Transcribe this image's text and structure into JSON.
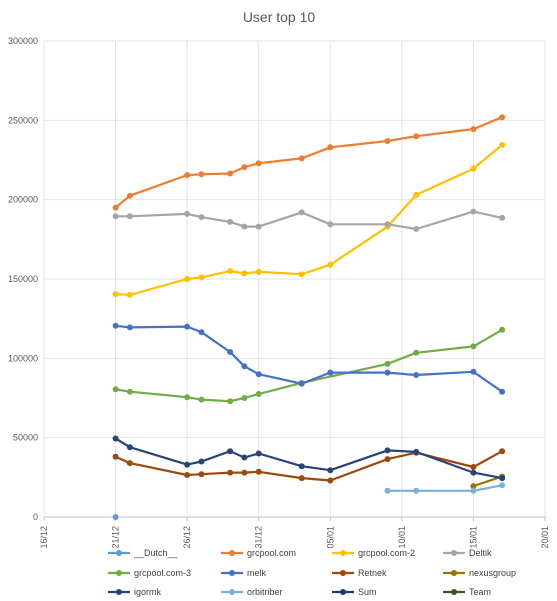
{
  "chart_data": {
    "type": "line",
    "title": "User top 10",
    "xlabel": "",
    "ylabel": "",
    "ylim": [
      0,
      300000
    ],
    "y_ticks": [
      0,
      50000,
      100000,
      150000,
      200000,
      250000,
      300000
    ],
    "xlim": [
      "2017-12-16",
      "2018-01-20"
    ],
    "x_ticks": [
      {
        "date": "2017-12-16",
        "label": "16/12"
      },
      {
        "date": "2017-12-21",
        "label": "21/12"
      },
      {
        "date": "2017-12-26",
        "label": "26/12"
      },
      {
        "date": "2017-12-31",
        "label": "31/12"
      },
      {
        "date": "2018-01-05",
        "label": "05/01"
      },
      {
        "date": "2018-01-10",
        "label": "10/01"
      },
      {
        "date": "2018-01-15",
        "label": "15/01"
      },
      {
        "date": "2018-01-20",
        "label": "20/01"
      }
    ],
    "grid": true,
    "legend_position": "bottom",
    "series": [
      {
        "name": "__Dutch__",
        "color": "#5B9BD5",
        "points": [
          [
            "2017-12-21",
            0
          ]
        ]
      },
      {
        "name": "grcpool.com",
        "color": "#ED7D31",
        "points": [
          [
            "2017-12-21",
            195000
          ],
          [
            "2017-12-22",
            202500
          ],
          [
            "2017-12-26",
            215500
          ],
          [
            "2017-12-27",
            216000
          ],
          [
            "2017-12-29",
            216500
          ],
          [
            "2017-12-30",
            220500
          ],
          [
            "2017-12-31",
            223000
          ],
          [
            "2018-01-03",
            226000
          ],
          [
            "2018-01-05",
            233000
          ],
          [
            "2018-01-09",
            237000
          ],
          [
            "2018-01-11",
            240000
          ],
          [
            "2018-01-15",
            244500
          ],
          [
            "2018-01-17",
            252000
          ]
        ]
      },
      {
        "name": "grcpool.com-2",
        "color": "#FFC000",
        "points": [
          [
            "2017-12-21",
            140500
          ],
          [
            "2017-12-22",
            140000
          ],
          [
            "2017-12-26",
            150000
          ],
          [
            "2017-12-27",
            151000
          ],
          [
            "2017-12-29",
            155000
          ],
          [
            "2017-12-30",
            153500
          ],
          [
            "2017-12-31",
            154500
          ],
          [
            "2018-01-03",
            153000
          ],
          [
            "2018-01-05",
            159000
          ],
          [
            "2018-01-09",
            183000
          ],
          [
            "2018-01-11",
            203000
          ],
          [
            "2018-01-15",
            219500
          ],
          [
            "2018-01-17",
            234500
          ]
        ]
      },
      {
        "name": "Deltik",
        "color": "#A5A5A5",
        "points": [
          [
            "2017-12-21",
            189500
          ],
          [
            "2017-12-22",
            189500
          ],
          [
            "2017-12-26",
            191000
          ],
          [
            "2017-12-27",
            189000
          ],
          [
            "2017-12-29",
            186000
          ],
          [
            "2017-12-30",
            183000
          ],
          [
            "2017-12-31",
            183000
          ],
          [
            "2018-01-03",
            192000
          ],
          [
            "2018-01-05",
            184500
          ],
          [
            "2018-01-09",
            184500
          ],
          [
            "2018-01-11",
            181500
          ],
          [
            "2018-01-15",
            192500
          ],
          [
            "2018-01-17",
            188500
          ]
        ]
      },
      {
        "name": "grcpool.com-3",
        "color": "#70AD47",
        "points": [
          [
            "2017-12-21",
            80500
          ],
          [
            "2017-12-22",
            79000
          ],
          [
            "2017-12-26",
            75500
          ],
          [
            "2017-12-27",
            74000
          ],
          [
            "2017-12-29",
            73000
          ],
          [
            "2017-12-30",
            75000
          ],
          [
            "2017-12-31",
            77500
          ],
          [
            "2018-01-03",
            84500
          ],
          [
            "2018-01-09",
            96500
          ],
          [
            "2018-01-11",
            103500
          ],
          [
            "2018-01-15",
            107500
          ],
          [
            "2018-01-17",
            118000
          ]
        ]
      },
      {
        "name": "melk",
        "color": "#4472C4",
        "points": [
          [
            "2017-12-21",
            120500
          ],
          [
            "2017-12-22",
            119500
          ],
          [
            "2017-12-26",
            120000
          ],
          [
            "2017-12-27",
            116500
          ],
          [
            "2017-12-29",
            104000
          ],
          [
            "2017-12-30",
            95000
          ],
          [
            "2017-12-31",
            90000
          ],
          [
            "2018-01-03",
            84000
          ],
          [
            "2018-01-05",
            91000
          ],
          [
            "2018-01-09",
            91000
          ],
          [
            "2018-01-11",
            89500
          ],
          [
            "2018-01-15",
            91500
          ],
          [
            "2018-01-17",
            79000
          ]
        ]
      },
      {
        "name": "Retnek",
        "color": "#9E480E",
        "points": [
          [
            "2017-12-21",
            38000
          ],
          [
            "2017-12-22",
            34000
          ],
          [
            "2017-12-26",
            26500
          ],
          [
            "2017-12-27",
            27000
          ],
          [
            "2017-12-29",
            28000
          ],
          [
            "2017-12-30",
            28000
          ],
          [
            "2017-12-31",
            28500
          ],
          [
            "2018-01-03",
            24500
          ],
          [
            "2018-01-05",
            23000
          ],
          [
            "2018-01-09",
            36500
          ],
          [
            "2018-01-11",
            40500
          ],
          [
            "2018-01-15",
            31500
          ],
          [
            "2018-01-17",
            41500
          ]
        ]
      },
      {
        "name": "nexusgroup",
        "color": "#997300",
        "points": [
          [
            "2018-01-15",
            19500
          ],
          [
            "2018-01-17",
            25500
          ]
        ]
      },
      {
        "name": "igormk",
        "color": "#264478",
        "points": [
          [
            "2017-12-21",
            49500
          ],
          [
            "2017-12-22",
            44000
          ],
          [
            "2017-12-26",
            33000
          ],
          [
            "2017-12-27",
            35000
          ],
          [
            "2017-12-29",
            41500
          ],
          [
            "2017-12-30",
            37500
          ],
          [
            "2017-12-31",
            40000
          ],
          [
            "2018-01-03",
            32000
          ],
          [
            "2018-01-05",
            29500
          ],
          [
            "2018-01-09",
            42000
          ],
          [
            "2018-01-11",
            41000
          ],
          [
            "2018-01-15",
            28000
          ],
          [
            "2018-01-17",
            24500
          ]
        ]
      },
      {
        "name": "orbitriber",
        "color": "#7CAFDD",
        "points": [
          [
            "2018-01-09",
            16500
          ],
          [
            "2018-01-11",
            16500
          ],
          [
            "2018-01-15",
            16500
          ],
          [
            "2018-01-17",
            20000
          ]
        ]
      },
      {
        "name": "Sum",
        "color": "#1F3864",
        "points": []
      },
      {
        "name": "Team",
        "color": "#375623",
        "points": []
      }
    ]
  }
}
